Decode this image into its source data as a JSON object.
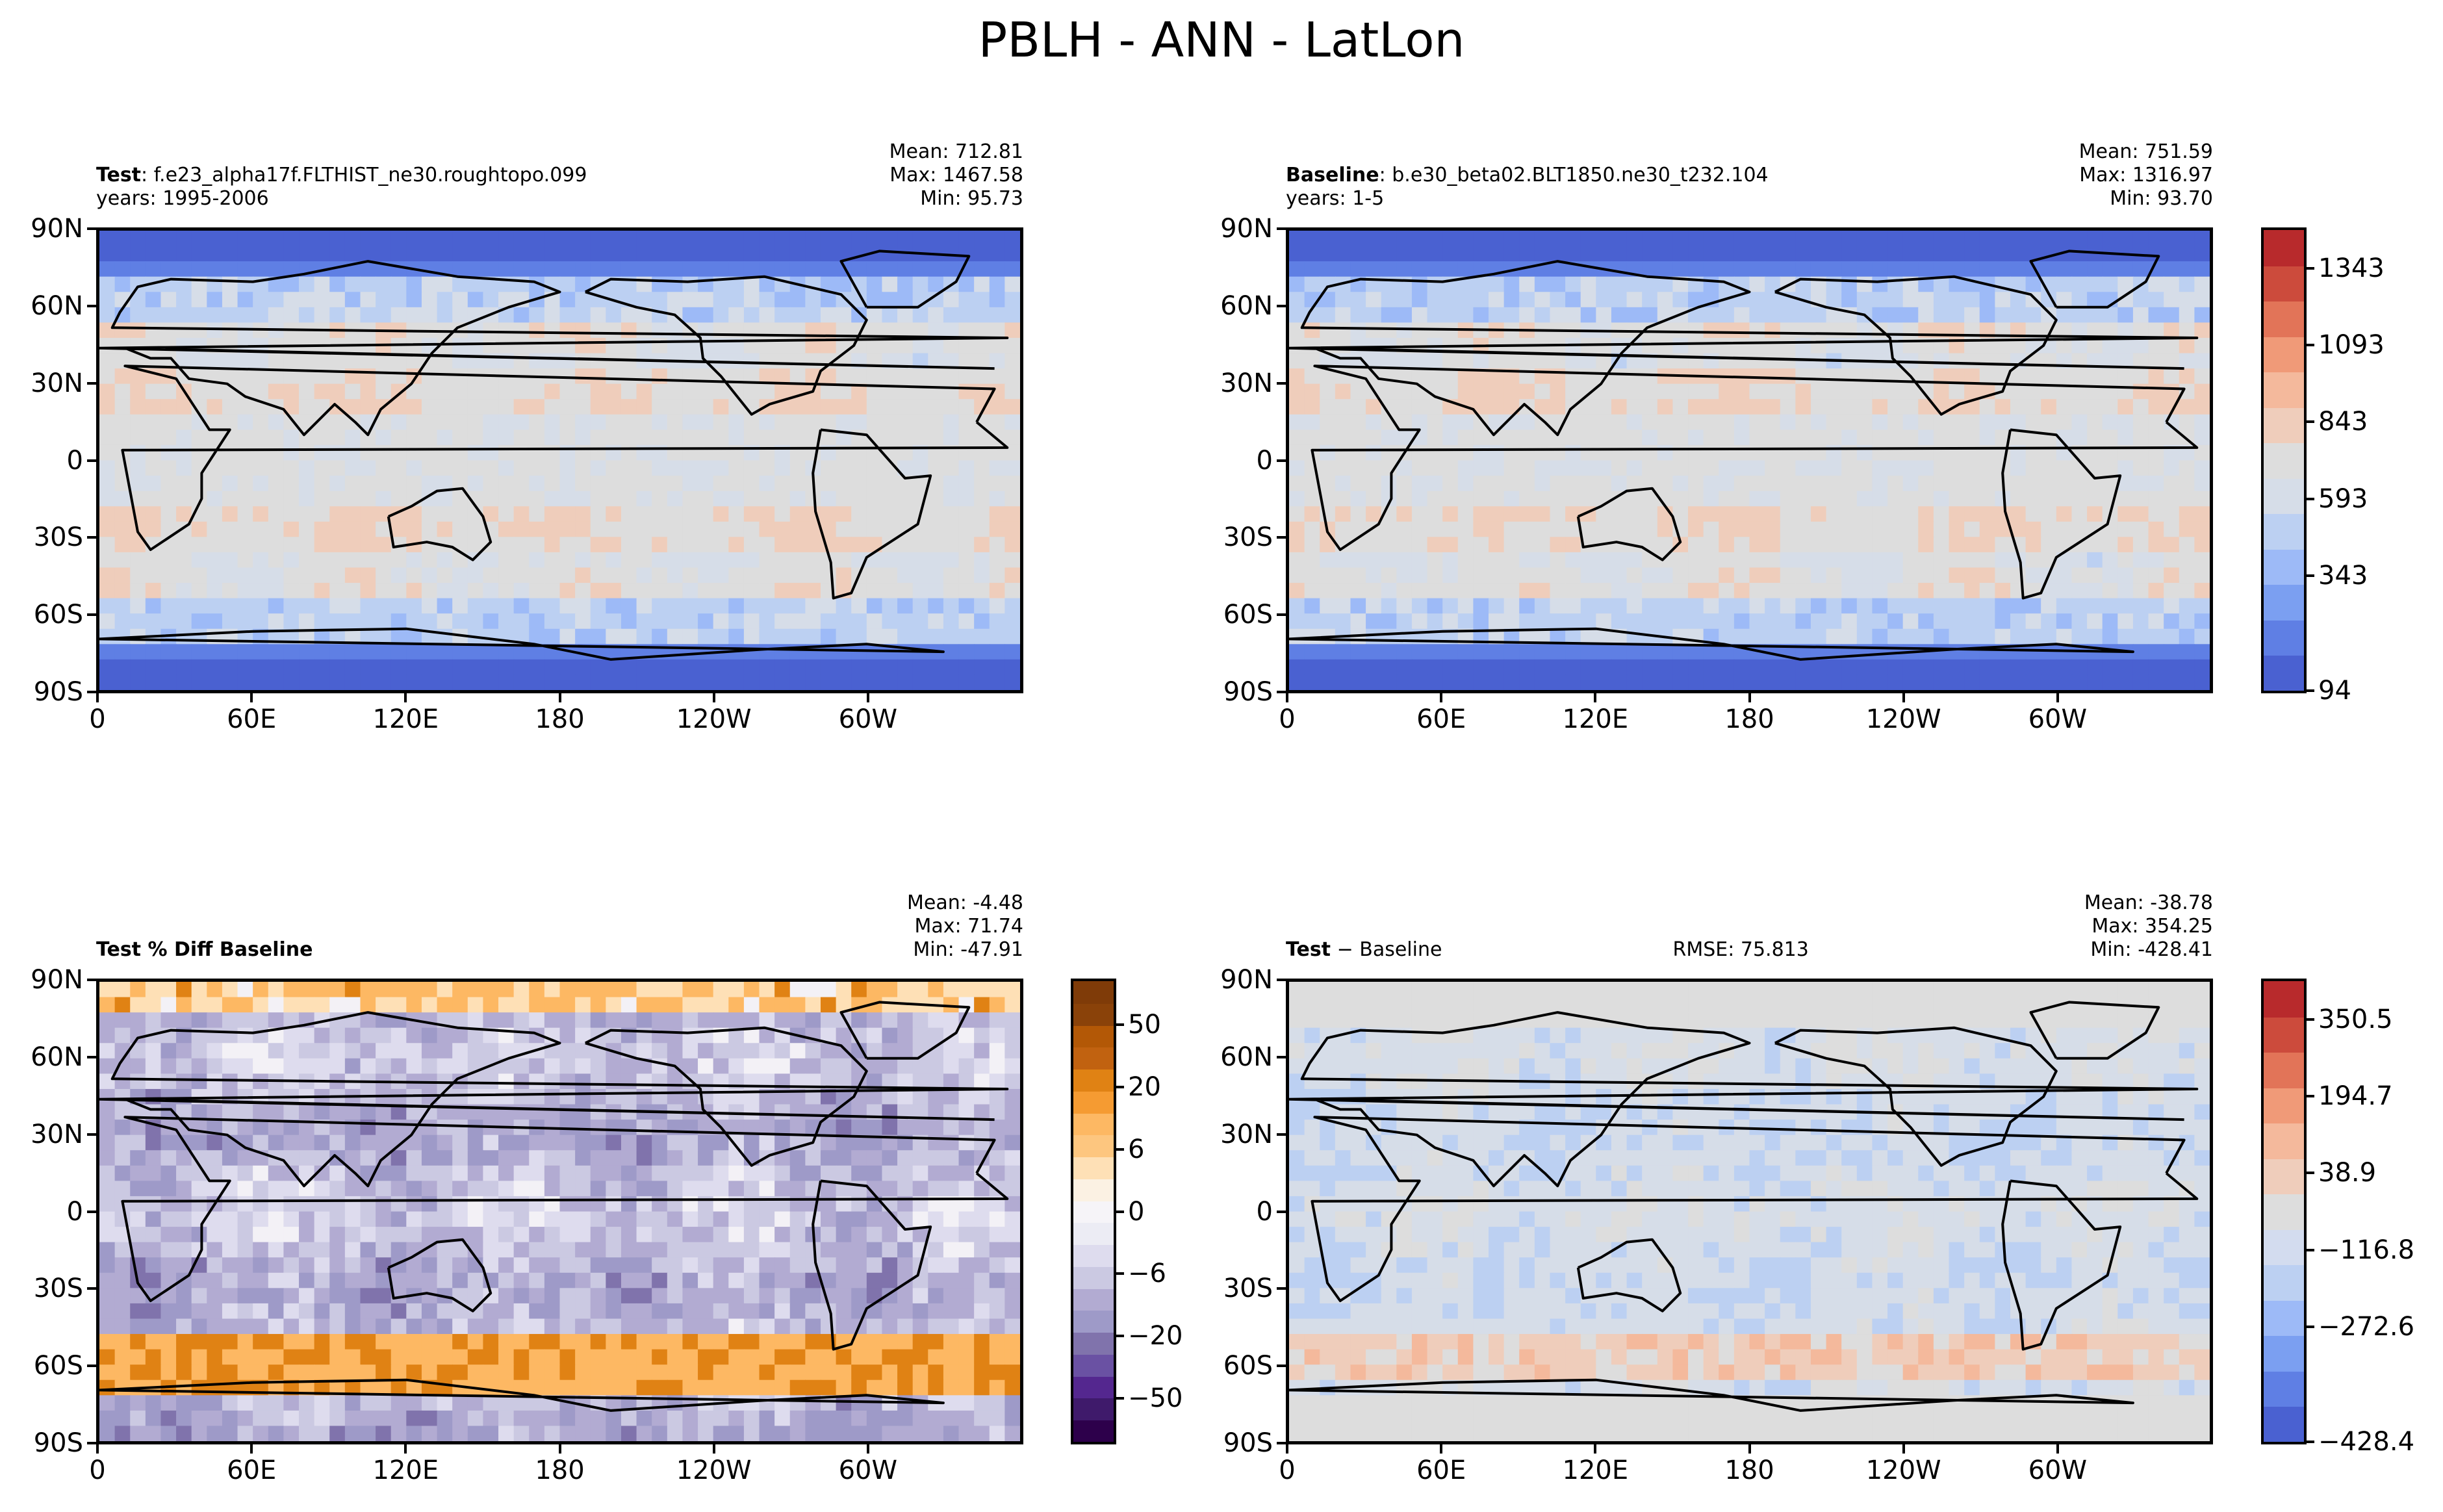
{
  "figure_title": "PBLH - ANN - LatLon",
  "chart_data": [
    {
      "type": "heatmap",
      "id": "test",
      "title_bold": "Test",
      "title_rest": ": f.e23_alpha17f.FLTHIST_ne30.roughtopo.099",
      "subtitle": "years: 1995-2006",
      "stats": [
        "Mean: 712.81",
        "Max: 1467.58",
        "Min: 95.73"
      ],
      "x_ticks": [
        "0",
        "60E",
        "120E",
        "180",
        "120W",
        "60W"
      ],
      "y_ticks": [
        "90N",
        "60N",
        "30N",
        "0",
        "30S",
        "60S",
        "90S"
      ],
      "xlim": [
        0,
        360
      ],
      "ylim": [
        -90,
        90
      ],
      "palette": "coolwarm",
      "colorbar": null
    },
    {
      "type": "heatmap",
      "id": "baseline",
      "title_bold": "Baseline",
      "title_rest": ": b.e30_beta02.BLT1850.ne30_t232.104",
      "subtitle": "years: 1-5",
      "stats": [
        "Mean: 751.59",
        "Max: 1316.97",
        "Min: 93.70"
      ],
      "x_ticks": [
        "0",
        "60E",
        "120E",
        "180",
        "120W",
        "60W"
      ],
      "y_ticks": [
        "90N",
        "60N",
        "30N",
        "0",
        "30S",
        "60S",
        "90S"
      ],
      "xlim": [
        0,
        360
      ],
      "ylim": [
        -90,
        90
      ],
      "palette": "coolwarm",
      "colorbar": {
        "labels": [
          "1343",
          "1093",
          "843",
          "593",
          "343",
          "94"
        ],
        "colors": [
          "#4a61d1",
          "#5f7fe4",
          "#7b9ff1",
          "#9dbaf7",
          "#bcd0f2",
          "#d6dde8",
          "#dddddd",
          "#efcdbb",
          "#f4b99c",
          "#f09a78",
          "#e27458",
          "#cc4b3c",
          "#b82a2c"
        ]
      }
    },
    {
      "type": "heatmap",
      "id": "pct-diff",
      "title_bold": "Test % Diff Baseline",
      "title_rest": "",
      "subtitle": "",
      "stats": [
        "Mean: -4.48",
        "Max: 71.74",
        "Min: -47.91"
      ],
      "x_ticks": [
        "0",
        "60E",
        "120E",
        "180",
        "120W",
        "60W"
      ],
      "y_ticks": [
        "90N",
        "60N",
        "30N",
        "0",
        "30S",
        "60S",
        "90S"
      ],
      "xlim": [
        0,
        360
      ],
      "ylim": [
        -90,
        90
      ],
      "palette": "PuOr",
      "colorbar": {
        "labels": [
          "50",
          "20",
          "6",
          "0",
          "−6",
          "−20",
          "−50"
        ],
        "colors": [
          "#2d004b",
          "#3f1a6b",
          "#54278f",
          "#6a51a3",
          "#8073ac",
          "#9e9ac8",
          "#b2abd2",
          "#cbc9e2",
          "#dedcee",
          "#ececf4",
          "#f6f4f8",
          "#fbf1e3",
          "#fee0b6",
          "#fdc67f",
          "#fdb863",
          "#f59b32",
          "#e08214",
          "#c16210",
          "#b35806",
          "#8a4209",
          "#7f3b08"
        ]
      }
    },
    {
      "type": "heatmap",
      "id": "diff",
      "title_bold": "Test",
      "title_rest": " − Baseline",
      "subtitle": "",
      "rmse": "RMSE: 75.813",
      "stats": [
        "Mean: -38.78",
        "Max: 354.25",
        "Min: -428.41"
      ],
      "x_ticks": [
        "0",
        "60E",
        "120E",
        "180",
        "120W",
        "60W"
      ],
      "y_ticks": [
        "90N",
        "60N",
        "30N",
        "0",
        "30S",
        "60S",
        "90S"
      ],
      "xlim": [
        0,
        360
      ],
      "ylim": [
        -90,
        90
      ],
      "palette": "coolwarm",
      "colorbar": {
        "labels": [
          "350.5",
          "194.7",
          "38.9",
          "−116.8",
          "−272.6",
          "−428.4"
        ],
        "colors": [
          "#4a61d1",
          "#5f7fe4",
          "#7b9ff1",
          "#9dbaf7",
          "#bcd0f2",
          "#d3dcef",
          "#dddddd",
          "#efcdbb",
          "#f4b99c",
          "#f09a78",
          "#e27458",
          "#cc4b3c",
          "#b82a2c"
        ]
      }
    }
  ]
}
